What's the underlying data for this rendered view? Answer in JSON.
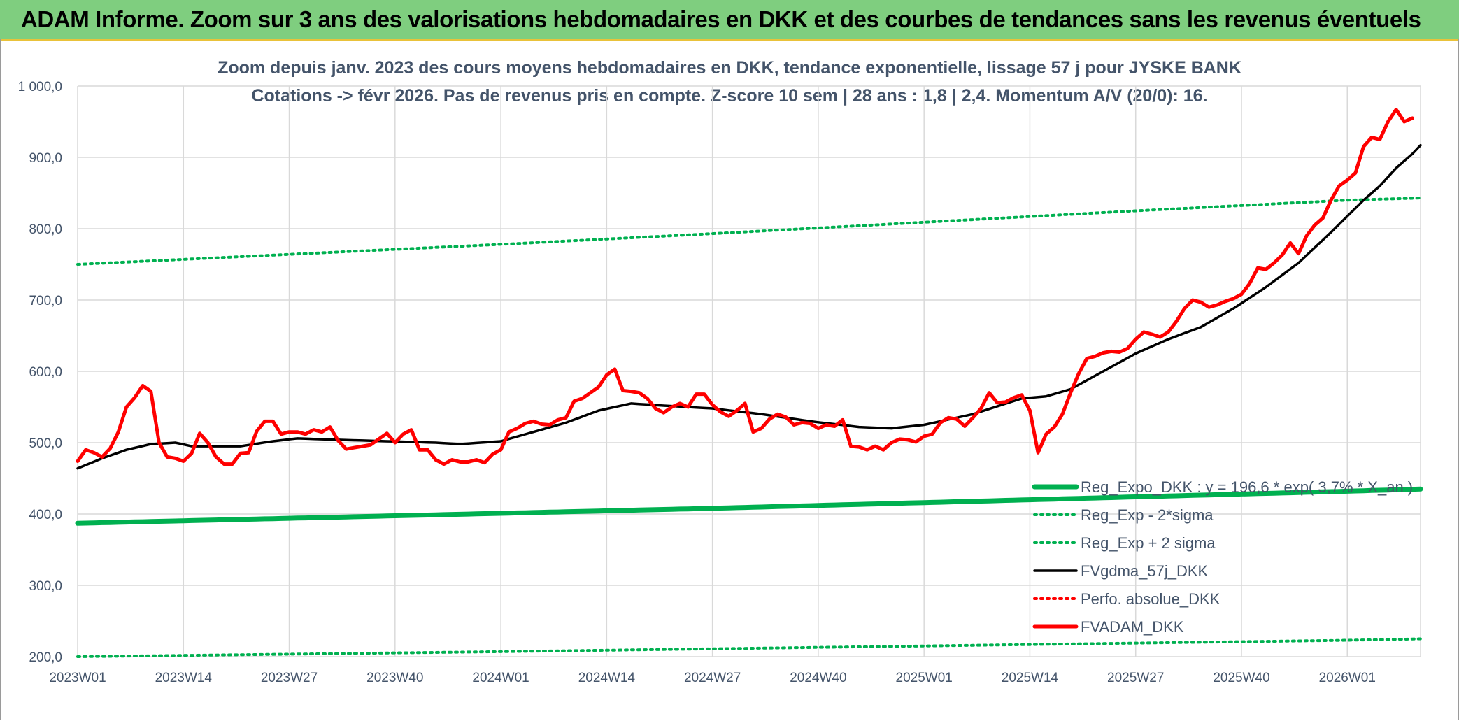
{
  "banner": {
    "title": "ADAM Informe. Zoom sur 3 ans des valorisations hebdomadaires en DKK et des courbes de tendances sans les revenus éventuels"
  },
  "colors": {
    "banner_bg": "#7fce7f",
    "banner_border": "#e9c23a",
    "text": "#44546a",
    "grid": "#d9d9d9",
    "regression": "#00b050",
    "gdma": "#000000",
    "fvadam": "#ff0000"
  },
  "chart_data": {
    "type": "line",
    "title": "Zoom depuis janv. 2023 des cours moyens hebdomadaires en DKK, tendance exponentielle, lissage 57 j pour JYSKE BANK",
    "subtitle": "Cotations -> févr 2026. Pas de revenus pris en compte. Z-score 10 sem | 28 ans : 1,8 | 2,4. Momentum A/V (20/0): 16.",
    "xlabel": "",
    "ylabel": "",
    "ylim": [
      200,
      1000
    ],
    "y_ticks": [
      "1 000,0",
      "900,0",
      "800,0",
      "700,0",
      "600,0",
      "500,0",
      "400,0",
      "300,0",
      "200,0"
    ],
    "y_tick_values": [
      1000,
      900,
      800,
      700,
      600,
      500,
      400,
      300,
      200
    ],
    "x_ticks": [
      "2023W01",
      "2023W14",
      "2023W27",
      "2023W40",
      "2024W01",
      "2024W14",
      "2024W27",
      "2024W40",
      "2025W01",
      "2025W14",
      "2025W27",
      "2025W40",
      "2026W01"
    ],
    "x_tick_weeks": [
      0,
      13,
      26,
      39,
      52,
      65,
      78,
      91,
      104,
      117,
      130,
      143,
      156
    ],
    "n_weeks": 166,
    "grid": true,
    "legend_position": "bottom-right",
    "series": [
      {
        "name": "Reg_Expo_DKK : y = 196,6 * exp( 3,7% * X_an )",
        "style": "solid-thick",
        "color": "#00b050",
        "keypoints": [
          [
            0,
            387
          ],
          [
            26,
            394
          ],
          [
            52,
            401
          ],
          [
            78,
            408
          ],
          [
            104,
            416
          ],
          [
            130,
            424
          ],
          [
            156,
            432
          ],
          [
            165,
            435
          ]
        ]
      },
      {
        "name": "Reg_Exp - 2*sigma",
        "style": "dotted",
        "color": "#00b050",
        "keypoints": [
          [
            0,
            200
          ],
          [
            52,
            207
          ],
          [
            104,
            215
          ],
          [
            156,
            223
          ],
          [
            165,
            225
          ]
        ]
      },
      {
        "name": "Reg_Exp + 2 sigma",
        "style": "dotted",
        "color": "#00b050",
        "keypoints": [
          [
            0,
            750
          ],
          [
            26,
            764
          ],
          [
            52,
            778
          ],
          [
            78,
            793
          ],
          [
            104,
            809
          ],
          [
            130,
            825
          ],
          [
            156,
            840
          ],
          [
            165,
            843
          ]
        ]
      },
      {
        "name": "FVgdma_57j_DKK",
        "style": "solid",
        "color": "#000000",
        "keypoints": [
          [
            0,
            464
          ],
          [
            3,
            478
          ],
          [
            6,
            490
          ],
          [
            9,
            498
          ],
          [
            12,
            500
          ],
          [
            14,
            495
          ],
          [
            20,
            495
          ],
          [
            24,
            502
          ],
          [
            27,
            506
          ],
          [
            32,
            504
          ],
          [
            38,
            502
          ],
          [
            44,
            500
          ],
          [
            47,
            498
          ],
          [
            52,
            502
          ],
          [
            56,
            515
          ],
          [
            60,
            528
          ],
          [
            64,
            545
          ],
          [
            68,
            555
          ],
          [
            72,
            552
          ],
          [
            78,
            548
          ],
          [
            84,
            540
          ],
          [
            90,
            530
          ],
          [
            96,
            522
          ],
          [
            100,
            520
          ],
          [
            104,
            525
          ],
          [
            110,
            540
          ],
          [
            116,
            562
          ],
          [
            119,
            565
          ],
          [
            122,
            575
          ],
          [
            126,
            600
          ],
          [
            130,
            625
          ],
          [
            134,
            645
          ],
          [
            138,
            662
          ],
          [
            142,
            688
          ],
          [
            146,
            718
          ],
          [
            150,
            752
          ],
          [
            154,
            795
          ],
          [
            158,
            840
          ],
          [
            160,
            860
          ],
          [
            162,
            885
          ],
          [
            164,
            905
          ],
          [
            165,
            917
          ]
        ]
      },
      {
        "name": "Perfo. absolue_DKK",
        "style": "dotted",
        "color": "#ff0000",
        "keypoints": []
      },
      {
        "name": "FVADAM_DKK",
        "style": "solid-thick",
        "color": "#ff0000",
        "keypoints": [
          [
            0,
            474
          ],
          [
            1,
            490
          ],
          [
            2,
            486
          ],
          [
            3,
            480
          ],
          [
            4,
            492
          ],
          [
            5,
            515
          ],
          [
            6,
            550
          ],
          [
            7,
            563
          ],
          [
            8,
            580
          ],
          [
            9,
            572
          ],
          [
            10,
            500
          ],
          [
            11,
            480
          ],
          [
            12,
            478
          ],
          [
            13,
            474
          ],
          [
            14,
            485
          ],
          [
            15,
            513
          ],
          [
            16,
            500
          ],
          [
            17,
            480
          ],
          [
            18,
            470
          ],
          [
            19,
            470
          ],
          [
            20,
            485
          ],
          [
            21,
            486
          ],
          [
            22,
            516
          ],
          [
            23,
            530
          ],
          [
            24,
            530
          ],
          [
            25,
            512
          ],
          [
            26,
            515
          ],
          [
            27,
            515
          ],
          [
            28,
            512
          ],
          [
            29,
            518
          ],
          [
            30,
            515
          ],
          [
            31,
            522
          ],
          [
            32,
            503
          ],
          [
            33,
            491
          ],
          [
            34,
            493
          ],
          [
            35,
            495
          ],
          [
            36,
            497
          ],
          [
            37,
            505
          ],
          [
            38,
            513
          ],
          [
            39,
            500
          ],
          [
            40,
            512
          ],
          [
            41,
            518
          ],
          [
            42,
            490
          ],
          [
            43,
            490
          ],
          [
            44,
            476
          ],
          [
            45,
            470
          ],
          [
            46,
            476
          ],
          [
            47,
            473
          ],
          [
            48,
            473
          ],
          [
            49,
            476
          ],
          [
            50,
            472
          ],
          [
            51,
            484
          ],
          [
            52,
            490
          ],
          [
            53,
            515
          ],
          [
            54,
            520
          ],
          [
            55,
            527
          ],
          [
            56,
            530
          ],
          [
            57,
            526
          ],
          [
            58,
            525
          ],
          [
            59,
            532
          ],
          [
            60,
            535
          ],
          [
            61,
            558
          ],
          [
            62,
            562
          ],
          [
            63,
            570
          ],
          [
            64,
            578
          ],
          [
            65,
            595
          ],
          [
            66,
            603
          ],
          [
            67,
            573
          ],
          [
            68,
            572
          ],
          [
            69,
            570
          ],
          [
            70,
            562
          ],
          [
            71,
            548
          ],
          [
            72,
            542
          ],
          [
            73,
            550
          ],
          [
            74,
            555
          ],
          [
            75,
            550
          ],
          [
            76,
            568
          ],
          [
            77,
            568
          ],
          [
            78,
            553
          ],
          [
            79,
            543
          ],
          [
            80,
            537
          ],
          [
            81,
            545
          ],
          [
            82,
            555
          ],
          [
            83,
            515
          ],
          [
            84,
            520
          ],
          [
            85,
            533
          ],
          [
            86,
            540
          ],
          [
            87,
            536
          ],
          [
            88,
            525
          ],
          [
            89,
            528
          ],
          [
            90,
            527
          ],
          [
            91,
            520
          ],
          [
            92,
            525
          ],
          [
            93,
            523
          ],
          [
            94,
            532
          ],
          [
            95,
            495
          ],
          [
            96,
            494
          ],
          [
            97,
            490
          ],
          [
            98,
            495
          ],
          [
            99,
            490
          ],
          [
            100,
            500
          ],
          [
            101,
            505
          ],
          [
            102,
            504
          ],
          [
            103,
            501
          ],
          [
            104,
            509
          ],
          [
            105,
            512
          ],
          [
            106,
            528
          ],
          [
            107,
            535
          ],
          [
            108,
            533
          ],
          [
            109,
            523
          ],
          [
            110,
            535
          ],
          [
            111,
            548
          ],
          [
            112,
            570
          ],
          [
            113,
            556
          ],
          [
            114,
            557
          ],
          [
            115,
            563
          ],
          [
            116,
            567
          ],
          [
            117,
            545
          ],
          [
            118,
            486
          ],
          [
            119,
            512
          ],
          [
            120,
            522
          ],
          [
            121,
            540
          ],
          [
            122,
            570
          ],
          [
            123,
            597
          ],
          [
            124,
            618
          ],
          [
            125,
            621
          ],
          [
            126,
            626
          ],
          [
            127,
            628
          ],
          [
            128,
            627
          ],
          [
            129,
            632
          ],
          [
            130,
            645
          ],
          [
            131,
            655
          ],
          [
            132,
            652
          ],
          [
            133,
            648
          ],
          [
            134,
            655
          ],
          [
            135,
            670
          ],
          [
            136,
            688
          ],
          [
            137,
            700
          ],
          [
            138,
            697
          ],
          [
            139,
            690
          ],
          [
            140,
            693
          ],
          [
            141,
            698
          ],
          [
            142,
            702
          ],
          [
            143,
            708
          ],
          [
            144,
            723
          ],
          [
            145,
            745
          ],
          [
            146,
            743
          ],
          [
            147,
            752
          ],
          [
            148,
            763
          ],
          [
            149,
            780
          ],
          [
            150,
            765
          ],
          [
            151,
            790
          ],
          [
            152,
            805
          ],
          [
            153,
            815
          ],
          [
            154,
            840
          ],
          [
            155,
            860
          ],
          [
            156,
            868
          ],
          [
            157,
            878
          ],
          [
            158,
            915
          ],
          [
            159,
            928
          ],
          [
            160,
            925
          ],
          [
            161,
            950
          ],
          [
            162,
            967
          ],
          [
            163,
            950
          ],
          [
            164,
            955
          ]
        ]
      }
    ]
  }
}
